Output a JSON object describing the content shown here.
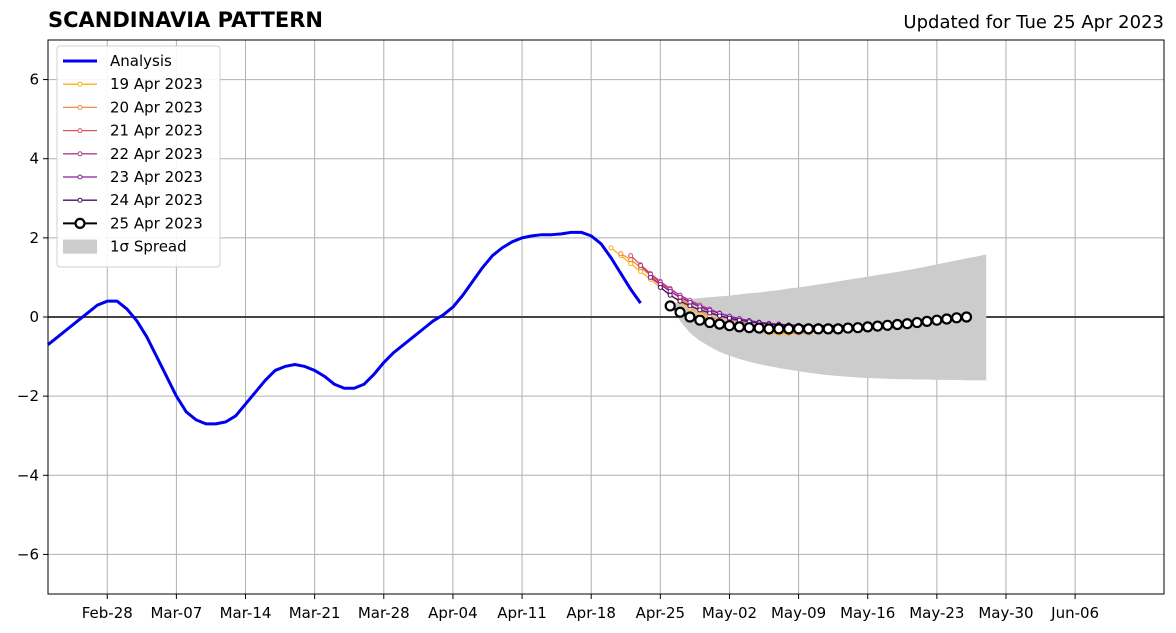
{
  "chart_data": {
    "type": "line",
    "title": "SCANDINAVIA PATTERN",
    "subtitle": "Updated for Tue 25 Apr 2023",
    "xlabel": "",
    "ylabel": "",
    "x_axis": {
      "start": "2023-02-22",
      "end": "2023-06-15",
      "ticks": [
        "2023-02-28",
        "2023-03-07",
        "2023-03-14",
        "2023-03-21",
        "2023-03-28",
        "2023-04-04",
        "2023-04-11",
        "2023-04-18",
        "2023-04-25",
        "2023-05-02",
        "2023-05-09",
        "2023-05-16",
        "2023-05-23",
        "2023-05-30",
        "2023-06-06"
      ],
      "tick_labels": [
        "Feb-28",
        "Mar-07",
        "Mar-14",
        "Mar-21",
        "Mar-28",
        "Apr-04",
        "Apr-11",
        "Apr-18",
        "Apr-25",
        "May-02",
        "May-09",
        "May-16",
        "May-23",
        "May-30",
        "Jun-06"
      ]
    },
    "ylim": [
      -7,
      7
    ],
    "y_ticks": [
      -6,
      -4,
      -2,
      0,
      2,
      4,
      6
    ],
    "y_tick_labels": [
      "−6",
      "−4",
      "−2",
      "0",
      "2",
      "4",
      "6"
    ],
    "grid": true,
    "legend_position": "top-left",
    "legend": [
      "Analysis",
      "19 Apr 2023",
      "20 Apr 2023",
      "21 Apr 2023",
      "22 Apr 2023",
      "23 Apr 2023",
      "24 Apr 2023",
      "25 Apr 2023",
      "1σ Spread"
    ],
    "series": [
      {
        "name": "Analysis",
        "color": "#0000ee",
        "start": "2023-02-22",
        "values": [
          -0.7,
          -0.5,
          -0.3,
          -0.1,
          0.1,
          0.3,
          0.4,
          0.4,
          0.2,
          -0.1,
          -0.5,
          -1.0,
          -1.5,
          -2.0,
          -2.4,
          -2.6,
          -2.7,
          -2.7,
          -2.65,
          -2.5,
          -2.2,
          -1.9,
          -1.6,
          -1.35,
          -1.25,
          -1.2,
          -1.25,
          -1.35,
          -1.5,
          -1.7,
          -1.8,
          -1.8,
          -1.7,
          -1.45,
          -1.15,
          -0.9,
          -0.7,
          -0.5,
          -0.3,
          -0.1,
          0.05,
          0.25,
          0.55,
          0.9,
          1.25,
          1.55,
          1.75,
          1.9,
          2.0,
          2.05,
          2.08,
          2.08,
          2.1,
          2.14,
          2.14,
          2.05,
          1.85,
          1.5,
          1.1,
          0.7,
          0.35
        ]
      },
      {
        "name": "19 Apr 2023",
        "color": "#fcb116",
        "start": "2023-04-20",
        "values": [
          1.75,
          1.55,
          1.35,
          1.15,
          0.95,
          0.75,
          0.55,
          0.38,
          0.22,
          0.08,
          -0.05,
          -0.15,
          -0.22,
          -0.28,
          -0.32,
          -0.36,
          -0.4,
          -0.42,
          -0.42,
          -0.4
        ]
      },
      {
        "name": "20 Apr 2023",
        "color": "#f28a3a",
        "start": "2023-04-21",
        "values": [
          1.6,
          1.45,
          1.25,
          1.05,
          0.85,
          0.65,
          0.47,
          0.3,
          0.15,
          0.02,
          -0.08,
          -0.16,
          -0.22,
          -0.28,
          -0.32,
          -0.35,
          -0.38,
          -0.4,
          -0.4,
          -0.4
        ]
      },
      {
        "name": "21 Apr 2023",
        "color": "#d8566a",
        "start": "2023-04-22",
        "values": [
          1.55,
          1.32,
          1.1,
          0.9,
          0.72,
          0.55,
          0.4,
          0.26,
          0.13,
          0.03,
          -0.05,
          -0.12,
          -0.18,
          -0.23,
          -0.27,
          -0.3,
          -0.32,
          -0.33,
          -0.34,
          -0.35
        ]
      },
      {
        "name": "22 Apr 2023",
        "color": "#b23c8f",
        "start": "2023-04-23",
        "values": [
          1.3,
          1.08,
          0.88,
          0.7,
          0.55,
          0.42,
          0.3,
          0.2,
          0.1,
          0.02,
          -0.05,
          -0.1,
          -0.15,
          -0.18,
          -0.2,
          -0.22,
          -0.23,
          -0.24,
          -0.25,
          -0.25
        ]
      },
      {
        "name": "23 Apr 2023",
        "color": "#86209e",
        "start": "2023-04-24",
        "values": [
          1.0,
          0.82,
          0.65,
          0.5,
          0.37,
          0.26,
          0.17,
          0.09,
          0.02,
          -0.04,
          -0.09,
          -0.13,
          -0.16,
          -0.18,
          -0.2,
          -0.21,
          -0.22,
          -0.22,
          -0.23,
          -0.23
        ]
      },
      {
        "name": "24 Apr 2023",
        "color": "#4b0c6b",
        "start": "2023-04-25",
        "values": [
          0.75,
          0.55,
          0.4,
          0.28,
          0.18,
          0.1,
          0.03,
          -0.03,
          -0.08,
          -0.12,
          -0.15,
          -0.18,
          -0.2,
          -0.21,
          -0.22,
          -0.22,
          -0.22,
          -0.22,
          -0.22,
          -0.22
        ]
      },
      {
        "name": "25 Apr 2023",
        "color": "#000000",
        "start": "2023-04-26",
        "values": [
          0.28,
          0.12,
          0.0,
          -0.08,
          -0.14,
          -0.18,
          -0.22,
          -0.25,
          -0.27,
          -0.28,
          -0.3,
          -0.3,
          -0.3,
          -0.3,
          -0.3,
          -0.3,
          -0.3,
          -0.3,
          -0.28,
          -0.27,
          -0.25,
          -0.23,
          -0.21,
          -0.19,
          -0.17,
          -0.14,
          -0.11,
          -0.08,
          -0.05,
          -0.02,
          0.0
        ]
      }
    ],
    "spread": {
      "name": "1σ Spread",
      "color": "#cccccc",
      "start": "2023-04-26",
      "upper": [
        0.3,
        0.4,
        0.45,
        0.48,
        0.5,
        0.52,
        0.54,
        0.57,
        0.6,
        0.62,
        0.65,
        0.68,
        0.72,
        0.75,
        0.78,
        0.82,
        0.86,
        0.9,
        0.94,
        0.98,
        1.02,
        1.06,
        1.1,
        1.14,
        1.18,
        1.23,
        1.28,
        1.33,
        1.38,
        1.43,
        1.48,
        1.53,
        1.58
      ],
      "lower": [
        0.3,
        -0.1,
        -0.4,
        -0.6,
        -0.75,
        -0.88,
        -0.98,
        -1.06,
        -1.13,
        -1.19,
        -1.24,
        -1.29,
        -1.33,
        -1.37,
        -1.41,
        -1.44,
        -1.47,
        -1.49,
        -1.51,
        -1.53,
        -1.54,
        -1.55,
        -1.56,
        -1.57,
        -1.57,
        -1.58,
        -1.58,
        -1.59,
        -1.59,
        -1.59,
        -1.6,
        -1.6,
        -1.6
      ]
    }
  }
}
